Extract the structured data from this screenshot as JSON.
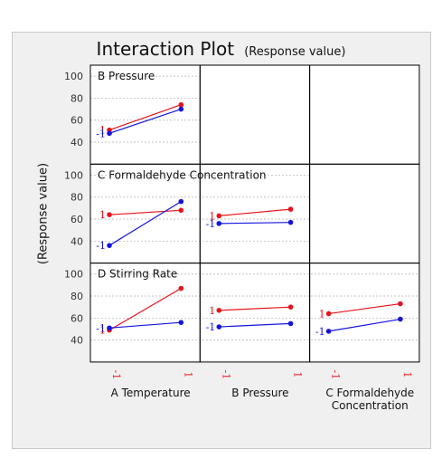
{
  "title": "Interaction Plot",
  "subtitle": "(Response value)",
  "ylabel": "(Response value)",
  "colors": {
    "high": "#e8121b",
    "low": "#1414e0",
    "grid": "#b0b0b0",
    "frame": "#000000"
  },
  "level_labels": {
    "high": "1",
    "low": "-1"
  },
  "x_factors": [
    "A Temperature",
    "B Pressure",
    "C Formaldehyde Concentration"
  ],
  "x_factor_lines": [
    [
      "A Temperature"
    ],
    [
      "B Pressure"
    ],
    [
      "C Formaldehyde",
      "Concentration"
    ]
  ],
  "x_tick_labels": [
    "-1",
    "1"
  ],
  "y_ticks": [
    40,
    60,
    80,
    100
  ],
  "chart_data": {
    "type": "line",
    "title": "Interaction Plot",
    "subtitle": "(Response value)",
    "ylabel": "(Response value)",
    "ylim": [
      20,
      110
    ],
    "x": [
      -1,
      1
    ],
    "grid": true,
    "panels": [
      {
        "row_factor": "B Pressure",
        "col_factor": "A Temperature",
        "series": [
          {
            "level": "1",
            "values": [
              51,
              74
            ]
          },
          {
            "level": "-1",
            "values": [
              48,
              70
            ]
          }
        ]
      },
      {
        "row_factor": "C Formaldehyde Concentration",
        "col_factor": "A Temperature",
        "series": [
          {
            "level": "1",
            "values": [
              64,
              68
            ]
          },
          {
            "level": "-1",
            "values": [
              36,
              76
            ]
          }
        ]
      },
      {
        "row_factor": "C Formaldehyde Concentration",
        "col_factor": "B Pressure",
        "series": [
          {
            "level": "1",
            "values": [
              63,
              69
            ]
          },
          {
            "level": "-1",
            "values": [
              56,
              57
            ]
          }
        ]
      },
      {
        "row_factor": "D Stirring Rate",
        "col_factor": "A Temperature",
        "series": [
          {
            "level": "1",
            "values": [
              49,
              87
            ]
          },
          {
            "level": "-1",
            "values": [
              51,
              56
            ]
          }
        ]
      },
      {
        "row_factor": "D Stirring Rate",
        "col_factor": "B Pressure",
        "series": [
          {
            "level": "1",
            "values": [
              67,
              70
            ]
          },
          {
            "level": "-1",
            "values": [
              52,
              55
            ]
          }
        ]
      },
      {
        "row_factor": "D Stirring Rate",
        "col_factor": "C Formaldehyde Concentration",
        "series": [
          {
            "level": "1",
            "values": [
              64,
              73
            ]
          },
          {
            "level": "-1",
            "values": [
              48,
              59
            ]
          }
        ]
      }
    ]
  }
}
